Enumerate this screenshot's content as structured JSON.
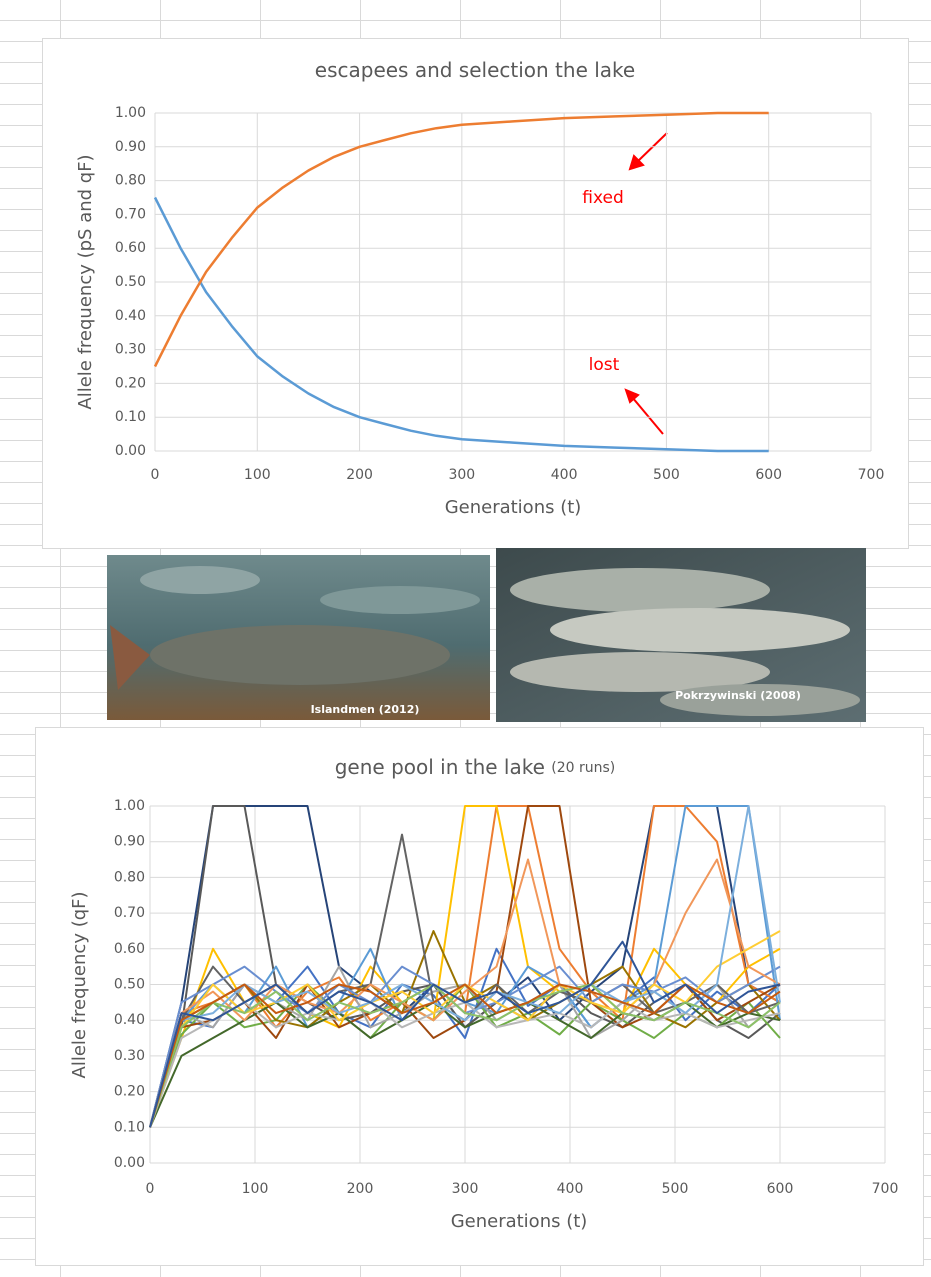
{
  "chart_data": [
    {
      "type": "line",
      "title": "escapees and selection the lake",
      "xlabel": "Generations (t)",
      "ylabel": "Allele frequency (pS and qF)",
      "x": [
        0,
        25,
        50,
        75,
        100,
        125,
        150,
        175,
        200,
        225,
        250,
        275,
        300,
        350,
        400,
        450,
        500,
        550,
        600
      ],
      "series": [
        {
          "color": "#5b9bd5",
          "values": [
            0.75,
            0.6,
            0.47,
            0.37,
            0.28,
            0.22,
            0.17,
            0.13,
            0.1,
            0.08,
            0.06,
            0.045,
            0.035,
            0.025,
            0.015,
            0.01,
            0.005,
            0.0,
            0.0
          ]
        },
        {
          "color": "#ed7d31",
          "values": [
            0.25,
            0.4,
            0.53,
            0.63,
            0.72,
            0.78,
            0.83,
            0.87,
            0.9,
            0.92,
            0.94,
            0.955,
            0.965,
            0.975,
            0.985,
            0.99,
            0.995,
            1.0,
            1.0
          ]
        }
      ],
      "annotations": [
        {
          "text": "fixed",
          "color": "#ff0000"
        },
        {
          "text": "lost",
          "color": "#ff0000"
        }
      ],
      "xlim": [
        0,
        700
      ],
      "xticks": [
        0,
        100,
        200,
        300,
        400,
        500,
        600,
        700
      ],
      "ylim": [
        0,
        1
      ],
      "yticks": [
        {
          "value": 0,
          "label": "0.00"
        },
        {
          "value": 0.1,
          "label": "0.10"
        },
        {
          "value": 0.2,
          "label": "0.20"
        },
        {
          "value": 0.3,
          "label": "0.30"
        },
        {
          "value": 0.4,
          "label": "0.40"
        },
        {
          "value": 0.5,
          "label": "0.50"
        },
        {
          "value": 0.6,
          "label": "0.60"
        },
        {
          "value": 0.7,
          "label": "0.70"
        },
        {
          "value": 0.8,
          "label": "0.80"
        },
        {
          "value": 0.9,
          "label": "0.90"
        },
        {
          "value": 1,
          "label": "1.00"
        }
      ],
      "grid": true
    },
    {
      "type": "line",
      "title": "gene pool in the lake",
      "title_note": "(20 runs)",
      "xlabel": "Generations (t)",
      "ylabel": "Allele frequency (qF)",
      "x": [
        0,
        30,
        60,
        90,
        120,
        150,
        180,
        210,
        240,
        270,
        300,
        330,
        360,
        390,
        420,
        450,
        480,
        510,
        540,
        570,
        600
      ],
      "series": [
        {
          "color": "#264478",
          "values": [
            0.1,
            0.45,
            1.0,
            1.0,
            1.0,
            1.0,
            0.55,
            0.48,
            0.42,
            0.5,
            0.38,
            0.45,
            0.52,
            0.4,
            0.48,
            0.55,
            1.0,
            1.0,
            1.0,
            0.5,
            0.45
          ]
        },
        {
          "color": "#4472c4",
          "values": [
            0.1,
            0.4,
            0.38,
            0.5,
            0.45,
            0.55,
            0.42,
            0.38,
            0.5,
            0.47,
            0.35,
            0.6,
            0.44,
            0.5,
            0.38,
            0.45,
            0.52,
            0.4,
            0.48,
            0.42,
            0.5
          ]
        },
        {
          "color": "#ed7d31",
          "values": [
            0.1,
            0.42,
            0.45,
            0.5,
            0.38,
            0.48,
            0.52,
            0.4,
            0.45,
            0.5,
            0.42,
            1.0,
            1.0,
            0.6,
            0.48,
            0.4,
            1.0,
            1.0,
            0.9,
            0.5,
            0.45
          ]
        },
        {
          "color": "#595959",
          "values": [
            0.1,
            0.38,
            1.0,
            1.0,
            0.5,
            0.45,
            0.4,
            0.42,
            0.48,
            0.5,
            0.38,
            0.45,
            0.4,
            0.5,
            0.42,
            0.38,
            0.45,
            0.5,
            0.4,
            0.35,
            0.42
          ]
        },
        {
          "color": "#ffc000",
          "values": [
            0.1,
            0.35,
            0.6,
            0.45,
            0.5,
            0.42,
            0.38,
            0.55,
            0.45,
            0.4,
            1.0,
            1.0,
            0.55,
            0.48,
            0.5,
            0.42,
            0.6,
            0.5,
            0.45,
            0.55,
            0.6
          ]
        },
        {
          "color": "#5b9bd5",
          "values": [
            0.1,
            0.4,
            0.5,
            0.42,
            0.55,
            0.38,
            0.45,
            0.6,
            0.4,
            0.5,
            0.45,
            0.42,
            0.55,
            0.5,
            0.38,
            0.45,
            0.5,
            1.0,
            1.0,
            1.0,
            0.4
          ]
        },
        {
          "color": "#70ad47",
          "values": [
            0.1,
            0.36,
            0.45,
            0.38,
            0.4,
            0.5,
            0.42,
            0.35,
            0.45,
            0.4,
            0.5,
            0.38,
            0.42,
            0.36,
            0.45,
            0.4,
            0.35,
            0.42,
            0.38,
            0.45,
            0.35
          ]
        },
        {
          "color": "#9e480e",
          "values": [
            0.1,
            0.38,
            0.4,
            0.45,
            0.35,
            0.5,
            0.38,
            0.42,
            0.45,
            0.35,
            0.4,
            0.48,
            1.0,
            1.0,
            0.45,
            0.38,
            0.42,
            0.5,
            0.4,
            0.45,
            0.5
          ]
        },
        {
          "color": "#a5a5a5",
          "values": [
            0.1,
            0.42,
            0.38,
            0.5,
            0.45,
            0.4,
            0.55,
            0.38,
            0.42,
            0.48,
            0.5,
            0.4,
            0.45,
            0.5,
            0.35,
            0.4,
            0.48,
            0.42,
            0.5,
            0.38,
            0.45
          ]
        },
        {
          "color": "#997300",
          "values": [
            0.1,
            0.4,
            0.45,
            0.5,
            0.4,
            0.38,
            0.45,
            0.5,
            0.42,
            0.65,
            0.45,
            0.5,
            0.4,
            0.45,
            0.5,
            0.55,
            0.42,
            0.38,
            0.45,
            0.5,
            0.4
          ]
        },
        {
          "color": "#43682b",
          "values": [
            0.1,
            0.3,
            0.35,
            0.4,
            0.45,
            0.38,
            0.42,
            0.35,
            0.4,
            0.45,
            0.38,
            0.42,
            0.45,
            0.4,
            0.35,
            0.42,
            0.4,
            0.45,
            0.38,
            0.42,
            0.4
          ]
        },
        {
          "color": "#636363",
          "values": [
            0.1,
            0.4,
            0.55,
            0.45,
            0.5,
            0.42,
            0.48,
            0.5,
            0.92,
            0.45,
            0.4,
            0.5,
            0.42,
            0.48,
            0.45,
            0.5,
            0.42,
            0.45,
            0.5,
            0.42,
            0.45
          ]
        },
        {
          "color": "#698ed0",
          "values": [
            0.1,
            0.45,
            0.5,
            0.55,
            0.48,
            0.42,
            0.5,
            0.45,
            0.55,
            0.5,
            0.42,
            0.45,
            0.5,
            0.55,
            0.45,
            0.5,
            0.48,
            0.52,
            0.45,
            0.5,
            0.55
          ]
        },
        {
          "color": "#f1975a",
          "values": [
            0.1,
            0.42,
            0.48,
            0.4,
            0.5,
            0.45,
            0.42,
            0.5,
            0.45,
            0.4,
            0.48,
            0.55,
            0.85,
            0.5,
            0.45,
            0.42,
            0.5,
            0.7,
            0.85,
            0.55,
            0.5
          ]
        },
        {
          "color": "#b7b7b7",
          "values": [
            0.1,
            0.35,
            0.4,
            0.45,
            0.38,
            0.42,
            0.4,
            0.45,
            0.38,
            0.42,
            0.45,
            0.38,
            0.4,
            0.42,
            0.38,
            0.45,
            0.4,
            0.42,
            0.38,
            0.4,
            0.42
          ]
        },
        {
          "color": "#ffcd33",
          "values": [
            0.1,
            0.38,
            0.5,
            0.42,
            0.45,
            0.5,
            0.4,
            0.45,
            0.48,
            0.42,
            0.5,
            0.45,
            0.4,
            0.5,
            0.45,
            0.42,
            0.5,
            0.45,
            0.55,
            0.6,
            0.65
          ]
        },
        {
          "color": "#7cafdd",
          "values": [
            0.1,
            0.4,
            0.42,
            0.5,
            0.45,
            0.48,
            0.42,
            0.45,
            0.5,
            0.45,
            0.4,
            0.48,
            0.45,
            0.42,
            0.5,
            0.45,
            0.48,
            0.42,
            0.5,
            1.0,
            0.45
          ]
        },
        {
          "color": "#8cc168",
          "values": [
            0.1,
            0.38,
            0.45,
            0.42,
            0.48,
            0.4,
            0.45,
            0.42,
            0.45,
            0.5,
            0.42,
            0.4,
            0.45,
            0.48,
            0.5,
            0.42,
            0.4,
            0.45,
            0.42,
            0.38,
            0.45
          ]
        },
        {
          "color": "#c55a11",
          "values": [
            0.1,
            0.4,
            0.45,
            0.5,
            0.42,
            0.45,
            0.5,
            0.48,
            0.42,
            0.45,
            0.5,
            0.42,
            0.45,
            0.5,
            0.48,
            0.45,
            0.42,
            0.5,
            0.45,
            0.42,
            0.48
          ]
        },
        {
          "color": "#2f5597",
          "values": [
            0.1,
            0.42,
            0.4,
            0.45,
            0.5,
            0.42,
            0.48,
            0.45,
            0.4,
            0.5,
            0.45,
            0.48,
            0.42,
            0.45,
            0.5,
            0.62,
            0.45,
            0.5,
            0.42,
            0.48,
            0.5
          ]
        }
      ],
      "xlim": [
        0,
        700
      ],
      "xticks": [
        0,
        100,
        200,
        300,
        400,
        500,
        600,
        700
      ],
      "ylim": [
        0,
        1
      ],
      "yticks": [
        {
          "value": 0,
          "label": "0.00"
        },
        {
          "value": 0.1,
          "label": "0.10"
        },
        {
          "value": 0.2,
          "label": "0.20"
        },
        {
          "value": 0.3,
          "label": "0.30"
        },
        {
          "value": 0.4,
          "label": "0.40"
        },
        {
          "value": 0.5,
          "label": "0.50"
        },
        {
          "value": 0.6,
          "label": "0.60"
        },
        {
          "value": 0.7,
          "label": "0.70"
        },
        {
          "value": 0.8,
          "label": "0.80"
        },
        {
          "value": 0.9,
          "label": "0.90"
        },
        {
          "value": 1,
          "label": "1.00"
        }
      ],
      "grid": true
    }
  ],
  "images": [
    {
      "caption": "Islandmen (2012)"
    },
    {
      "caption": "Pokrzywinski  (2008)"
    }
  ]
}
